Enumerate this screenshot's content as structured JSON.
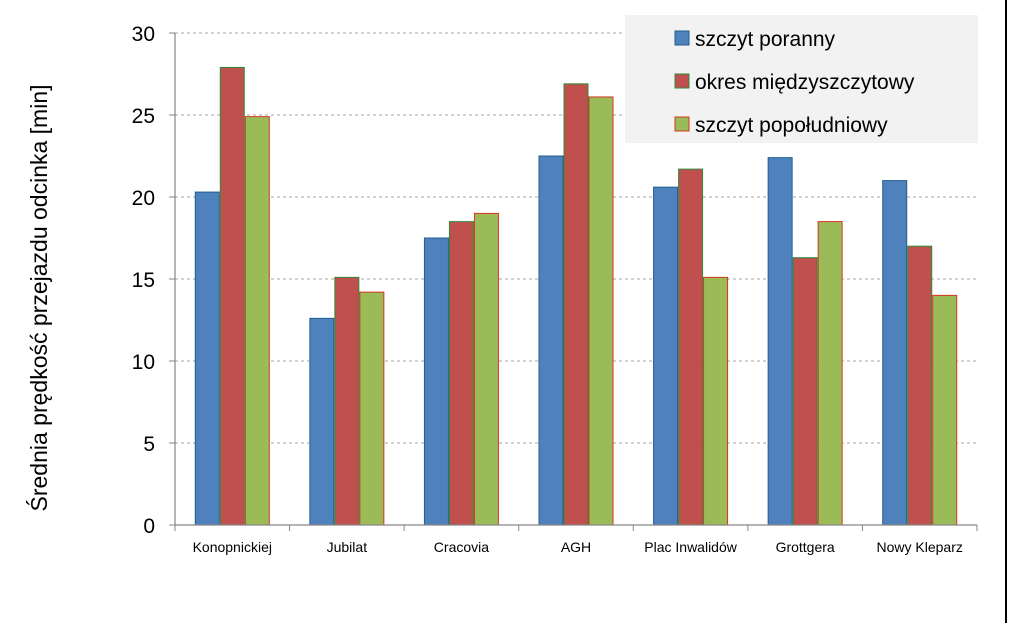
{
  "chart_data": {
    "type": "bar",
    "title": "",
    "xlabel": "",
    "ylabel": "Średnia prędkość przejazdu odcinka [min]",
    "ylim": [
      0,
      30
    ],
    "yticks": [
      0,
      5,
      10,
      15,
      20,
      25,
      30
    ],
    "grid": true,
    "legend_position": "top-right",
    "categories": [
      "Konopnickiej",
      "Jubilat",
      "Cracovia",
      "AGH",
      "Plac Inwalidów",
      "Grottgera",
      "Nowy Kleparz"
    ],
    "series": [
      {
        "name": "szczyt poranny",
        "color": "#4F81BD",
        "edge": "#1F5F8F",
        "values": [
          20.3,
          12.6,
          17.5,
          22.5,
          20.6,
          22.4,
          21.0
        ]
      },
      {
        "name": "okres międzyszczytowy",
        "color": "#C0504D",
        "edge": "#2E8B3A",
        "values": [
          27.9,
          15.1,
          18.5,
          26.9,
          21.7,
          16.3,
          17.0
        ]
      },
      {
        "name": "szczyt popołudniowy",
        "color": "#9BBB59",
        "edge": "#D9341F",
        "values": [
          24.9,
          14.2,
          19.0,
          26.1,
          15.1,
          18.5,
          14.0
        ]
      }
    ],
    "colors": {
      "grid": "#A6A6A6",
      "axis": "#868686",
      "legend_bg": "#F2F2F2"
    }
  }
}
